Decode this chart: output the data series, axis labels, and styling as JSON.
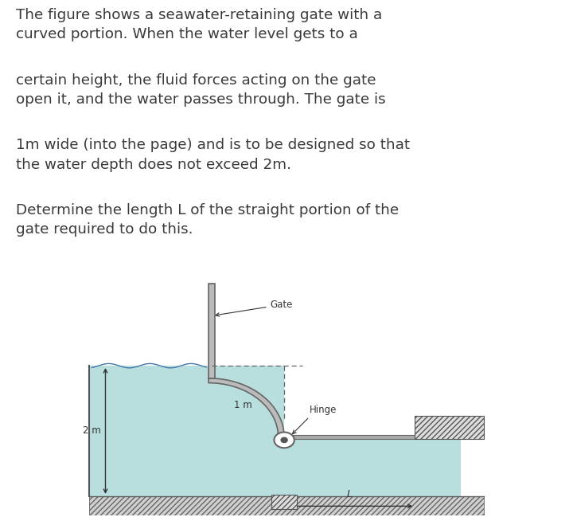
{
  "background_color": "#ffffff",
  "text_color": "#3a3a3a",
  "water_color": "#b8dede",
  "gate_color": "#666666",
  "gate_fill": "#bbbbbb",
  "text_lines": [
    "The figure shows a seawater-retaining gate with a",
    "curved portion. When the water level gets to a",
    "certain height, the fluid forces acting on the gate",
    "open it, and the water passes through. The gate is",
    "1m wide (into the page) and is to be designed so that",
    "the water depth does not exceed 2m.",
    "Determine the length L of the straight portion of the",
    "gate required to do this."
  ],
  "font_size_text": 13.2,
  "fig_width": 7.2,
  "fig_height": 6.54,
  "paragraphs": [
    [
      "The figure shows a seawater-retaining gate with a",
      "curved portion. When the water level gets to a"
    ],
    [
      "certain height, the fluid forces acting on the gate",
      "open it, and the water passes through. The gate is"
    ],
    [
      "1m wide (into the page) and is to be designed so that",
      "the water depth does not exceed 2m."
    ],
    [
      "Determine the length L of the straight portion of the",
      "gate required to do this."
    ]
  ]
}
